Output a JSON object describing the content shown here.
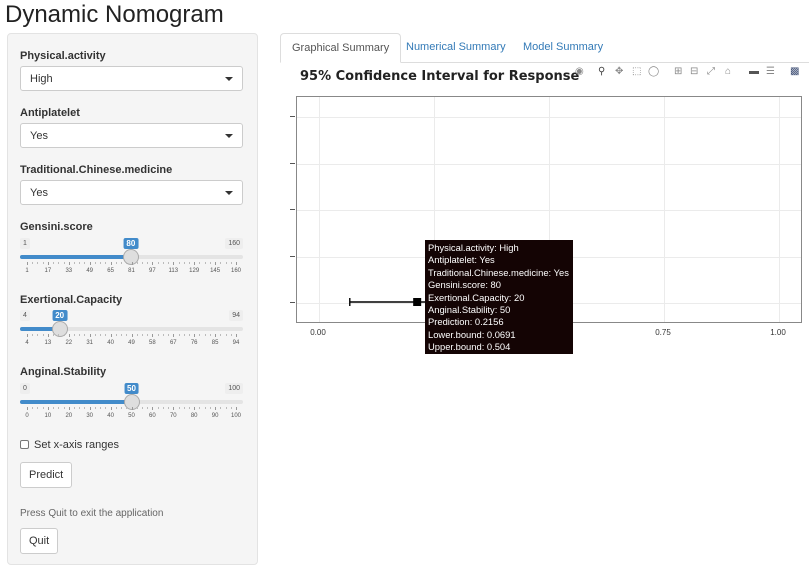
{
  "app_title": "Dynamic Nomogram",
  "sidebar": {
    "physical_activity": {
      "label": "Physical.activity",
      "value": "High"
    },
    "antiplatelet": {
      "label": "Antiplatelet",
      "value": "Yes"
    },
    "tcm": {
      "label": "Traditional.Chinese.medicine",
      "value": "Yes"
    },
    "gensini": {
      "label": "Gensini.score",
      "min": "1",
      "max": "160",
      "value": "80",
      "fraction": 0.497,
      "ticks": [
        "1",
        "17",
        "33",
        "49",
        "65",
        "81",
        "97",
        "113",
        "129",
        "145",
        "160"
      ]
    },
    "exertional": {
      "label": "Exertional.Capacity",
      "min": "4",
      "max": "94",
      "value": "20",
      "fraction": 0.178,
      "ticks": [
        "4",
        "13",
        "22",
        "31",
        "40",
        "49",
        "58",
        "67",
        "76",
        "85",
        "94"
      ]
    },
    "anginal": {
      "label": "Anginal.Stability",
      "min": "0",
      "max": "100",
      "value": "50",
      "fraction": 0.5,
      "ticks": [
        "0",
        "10",
        "20",
        "30",
        "40",
        "50",
        "60",
        "70",
        "80",
        "90",
        "100"
      ]
    },
    "checkbox_label": "Set x-axis ranges",
    "predict_label": "Predict",
    "help_text": "Press Quit to exit the application",
    "quit_label": "Quit"
  },
  "tabs": [
    {
      "label": "Graphical Summary",
      "active": true
    },
    {
      "label": "Numerical Summary",
      "active": false
    },
    {
      "label": "Model Summary",
      "active": false
    }
  ],
  "plot": {
    "title": "95% Confidence Interval for Response",
    "x_ticks": [
      "0.00",
      "0.75",
      "1.00"
    ],
    "modebar_icons": [
      "camera-icon",
      "zoom-icon",
      "pan-icon",
      "box-select-icon",
      "lasso-icon",
      "zoom-in-icon",
      "zoom-out-icon",
      "autoscale-icon",
      "reset-icon",
      "spike-icon",
      "compare-icon",
      "plotly-logo-icon"
    ]
  },
  "tooltip": {
    "lines": [
      "Physical.activity: High",
      "Antiplatelet: Yes",
      "Traditional.Chinese.medicine: Yes",
      "Gensini.score: 80",
      "Exertional.Capacity: 20",
      "Anginal.Stability: 50",
      "Prediction: 0.2156",
      "Lower.bound: 0.0691",
      "Upper.bound: 0.504"
    ]
  },
  "chart_data": {
    "type": "scatter",
    "title": "95% Confidence Interval for Response",
    "xlim": [
      -0.05,
      1.05
    ],
    "x_ticks": [
      0,
      0.75,
      1.0
    ],
    "series": [
      {
        "prediction": 0.2156,
        "lower": 0.0691,
        "upper": 0.504
      }
    ]
  }
}
